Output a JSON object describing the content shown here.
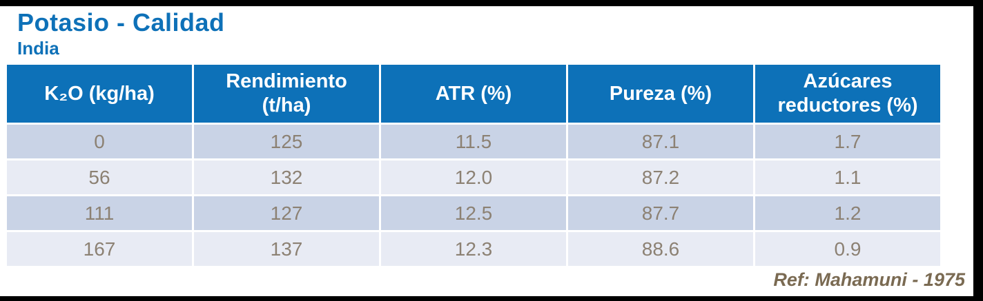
{
  "slide": {
    "title": "Potasio - Calidad",
    "subtitle": "India",
    "reference": "Ref: Mahamuni - 1975"
  },
  "colors": {
    "accent_blue": "#0E71B8",
    "table_header_bg": "#0D71B8",
    "table_header_text": "#FFFFFF",
    "row_odd_bg": "#C9D3E6",
    "row_even_bg": "#E8EBF4",
    "cell_text": "#8C8173",
    "reference_text": "#7A6A52",
    "frame_bars": "#000000"
  },
  "chart_data": {
    "type": "table",
    "title": "Potasio - Calidad",
    "subtitle": "India",
    "columns": [
      "K₂O (kg/ha)",
      "Rendimiento\n(t/ha)",
      "ATR (%)",
      "Pureza (%)",
      "Azúcares\nreductores (%)"
    ],
    "rows": [
      [
        "0",
        "125",
        "11.5",
        "87.1",
        "1.7"
      ],
      [
        "56",
        "132",
        "12.0",
        "87.2",
        "1.1"
      ],
      [
        "111",
        "127",
        "12.5",
        "87.7",
        "1.2"
      ],
      [
        "167",
        "137",
        "12.3",
        "88.6",
        "0.9"
      ]
    ],
    "reference": "Ref: Mahamuni - 1975",
    "layout": {
      "header_rows": 1,
      "data_rows": 4,
      "columns_equal_width": true,
      "row_striping": [
        "odd_steel_blue",
        "even_light_blue"
      ]
    }
  }
}
